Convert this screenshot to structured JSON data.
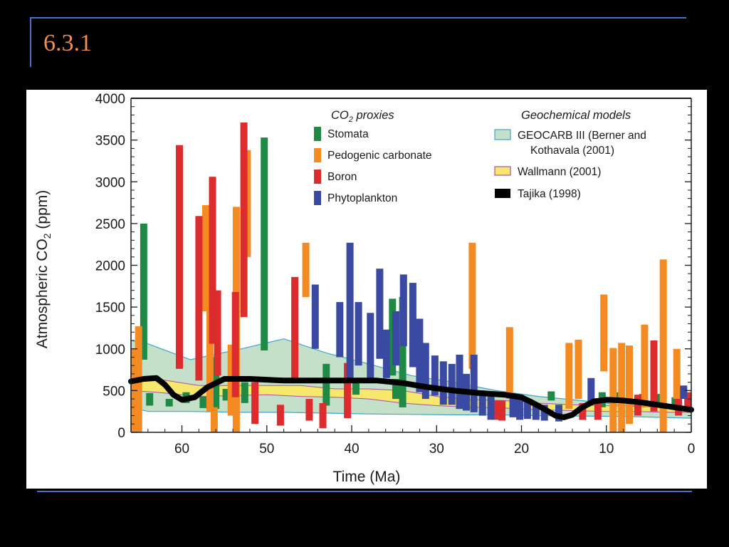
{
  "slide": {
    "title": "6.3.1"
  },
  "chart_data": {
    "type": "bar",
    "xlabel": "Time (Ma)",
    "ylabel": "Atmospheric CO₂ (ppm)",
    "xlim": [
      66,
      0
    ],
    "ylim": [
      0,
      4000
    ],
    "x_ticks": [
      60,
      50,
      40,
      30,
      20,
      10,
      0
    ],
    "y_ticks": [
      0,
      500,
      1000,
      1500,
      2000,
      2500,
      3000,
      3500,
      4000
    ],
    "legend_proxies": {
      "heading": "CO₂ proxies",
      "items": [
        {
          "name": "Stomata",
          "color": "#1e8a45"
        },
        {
          "name": "Pedogenic carbonate",
          "color": "#f48a22"
        },
        {
          "name": "Boron",
          "color": "#dc2c2e"
        },
        {
          "name": "Phytoplankton",
          "color": "#3a4aa3"
        }
      ]
    },
    "legend_models": {
      "heading": "Geochemical models",
      "items": [
        {
          "name": "GEOCARB III (Berner and",
          "name_line2": "Kothavala (2001)",
          "color": "#c4e0c8",
          "stroke": "#3da5cf"
        },
        {
          "name": "Wallmann (2001)",
          "color": "#f5e86c",
          "stroke": "#b04fa0"
        },
        {
          "name": "Tajika (1998)",
          "color": "#000000"
        }
      ]
    },
    "proxy_ranges": [
      {
        "proxy": "Stomata",
        "x": 64.5,
        "low": 870,
        "high": 2500
      },
      {
        "proxy": "Stomata",
        "x": 65.5,
        "low": 330,
        "high": 520
      },
      {
        "proxy": "Stomata",
        "x": 63.8,
        "low": 320,
        "high": 470
      },
      {
        "proxy": "Stomata",
        "x": 61.5,
        "low": 310,
        "high": 400
      },
      {
        "proxy": "Stomata",
        "x": 59.5,
        "low": 350,
        "high": 480
      },
      {
        "proxy": "Stomata",
        "x": 57.5,
        "low": 290,
        "high": 430
      },
      {
        "proxy": "Stomata",
        "x": 56.0,
        "low": 280,
        "high": 900
      },
      {
        "proxy": "Stomata",
        "x": 54.8,
        "low": 380,
        "high": 520
      },
      {
        "proxy": "Stomata",
        "x": 52.6,
        "low": 350,
        "high": 600
      },
      {
        "proxy": "Stomata",
        "x": 50.3,
        "low": 980,
        "high": 3530
      },
      {
        "proxy": "Stomata",
        "x": 43.0,
        "low": 320,
        "high": 820
      },
      {
        "proxy": "Stomata",
        "x": 39.5,
        "low": 450,
        "high": 600
      },
      {
        "proxy": "Stomata",
        "x": 35.2,
        "low": 680,
        "high": 1600
      },
      {
        "proxy": "Stomata",
        "x": 34.8,
        "low": 400,
        "high": 640
      },
      {
        "proxy": "Stomata",
        "x": 34.0,
        "low": 300,
        "high": 1620
      },
      {
        "proxy": "Stomata",
        "x": 16.5,
        "low": 380,
        "high": 490
      },
      {
        "proxy": "Stomata",
        "x": 10.5,
        "low": 300,
        "high": 480
      },
      {
        "proxy": "Stomata",
        "x": 8.7,
        "low": 350,
        "high": 480
      },
      {
        "proxy": "Stomata",
        "x": 5.7,
        "low": 300,
        "high": 460
      },
      {
        "proxy": "Stomata",
        "x": 3.8,
        "low": 320,
        "high": 460
      },
      {
        "proxy": "Stomata",
        "x": 1.9,
        "low": 280,
        "high": 420
      },
      {
        "proxy": "Pedogenic carbonate",
        "x": 65.6,
        "low": 0,
        "high": 1000
      },
      {
        "proxy": "Pedogenic carbonate",
        "x": 65.1,
        "low": 0,
        "high": 1270
      },
      {
        "proxy": "Pedogenic carbonate",
        "x": 57.2,
        "low": 1450,
        "high": 2720
      },
      {
        "proxy": "Pedogenic carbonate",
        "x": 56.7,
        "low": 250,
        "high": 2120
      },
      {
        "proxy": "Pedogenic carbonate",
        "x": 56.2,
        "low": 0,
        "high": 300
      },
      {
        "proxy": "Pedogenic carbonate",
        "x": 54.2,
        "low": 200,
        "high": 1050
      },
      {
        "proxy": "Pedogenic carbonate",
        "x": 53.6,
        "low": 0,
        "high": 2700
      },
      {
        "proxy": "Pedogenic carbonate",
        "x": 52.3,
        "low": 2100,
        "high": 3380
      },
      {
        "proxy": "Pedogenic carbonate",
        "x": 45.4,
        "low": 1620,
        "high": 2270
      },
      {
        "proxy": "Pedogenic carbonate",
        "x": 25.8,
        "low": 760,
        "high": 2270
      },
      {
        "proxy": "Pedogenic carbonate",
        "x": 21.4,
        "low": 400,
        "high": 1260
      },
      {
        "proxy": "Pedogenic carbonate",
        "x": 14.4,
        "low": 280,
        "high": 1070
      },
      {
        "proxy": "Pedogenic carbonate",
        "x": 13.3,
        "low": 400,
        "high": 1110
      },
      {
        "proxy": "Pedogenic carbonate",
        "x": 10.3,
        "low": 730,
        "high": 1650
      },
      {
        "proxy": "Pedogenic carbonate",
        "x": 9.2,
        "low": 0,
        "high": 1010
      },
      {
        "proxy": "Pedogenic carbonate",
        "x": 8.2,
        "low": 0,
        "high": 1070
      },
      {
        "proxy": "Pedogenic carbonate",
        "x": 7.3,
        "low": 100,
        "high": 1040
      },
      {
        "proxy": "Pedogenic carbonate",
        "x": 5.5,
        "low": 300,
        "high": 1290
      },
      {
        "proxy": "Pedogenic carbonate",
        "x": 3.3,
        "low": 0,
        "high": 2070
      },
      {
        "proxy": "Pedogenic carbonate",
        "x": 1.7,
        "low": 400,
        "high": 1000
      },
      {
        "proxy": "Boron",
        "x": 60.3,
        "low": 760,
        "high": 3440
      },
      {
        "proxy": "Boron",
        "x": 58.0,
        "low": 620,
        "high": 2590
      },
      {
        "proxy": "Boron",
        "x": 56.4,
        "low": 1060,
        "high": 3060
      },
      {
        "proxy": "Boron",
        "x": 55.8,
        "low": 680,
        "high": 1700
      },
      {
        "proxy": "Boron",
        "x": 53.7,
        "low": 420,
        "high": 1680
      },
      {
        "proxy": "Boron",
        "x": 52.7,
        "low": 1380,
        "high": 3710
      },
      {
        "proxy": "Boron",
        "x": 51.4,
        "low": 100,
        "high": 600
      },
      {
        "proxy": "Boron",
        "x": 48.4,
        "low": 80,
        "high": 330
      },
      {
        "proxy": "Boron",
        "x": 46.7,
        "low": 600,
        "high": 1860
      },
      {
        "proxy": "Boron",
        "x": 45.0,
        "low": 140,
        "high": 400
      },
      {
        "proxy": "Boron",
        "x": 43.4,
        "low": 50,
        "high": 350
      },
      {
        "proxy": "Boron",
        "x": 40.5,
        "low": 170,
        "high": 830
      },
      {
        "proxy": "Boron",
        "x": 23.0,
        "low": 150,
        "high": 380
      },
      {
        "proxy": "Boron",
        "x": 22.3,
        "low": 140,
        "high": 380
      },
      {
        "proxy": "Boron",
        "x": 12.8,
        "low": 150,
        "high": 350
      },
      {
        "proxy": "Boron",
        "x": 11.0,
        "low": 150,
        "high": 400
      },
      {
        "proxy": "Boron",
        "x": 6.3,
        "low": 200,
        "high": 450
      },
      {
        "proxy": "Boron",
        "x": 4.4,
        "low": 250,
        "high": 1100
      },
      {
        "proxy": "Boron",
        "x": 1.5,
        "low": 200,
        "high": 400
      },
      {
        "proxy": "Boron",
        "x": 0.4,
        "low": 250,
        "high": 480
      },
      {
        "proxy": "Phytoplankton",
        "x": 44.3,
        "low": 1000,
        "high": 1770
      },
      {
        "proxy": "Phytoplankton",
        "x": 41.4,
        "low": 900,
        "high": 1560
      },
      {
        "proxy": "Phytoplankton",
        "x": 40.2,
        "low": 600,
        "high": 2270
      },
      {
        "proxy": "Phytoplankton",
        "x": 39.2,
        "low": 800,
        "high": 1560
      },
      {
        "proxy": "Phytoplankton",
        "x": 37.8,
        "low": 650,
        "high": 1430
      },
      {
        "proxy": "Phytoplankton",
        "x": 36.7,
        "low": 880,
        "high": 1960
      },
      {
        "proxy": "Phytoplankton",
        "x": 35.9,
        "low": 650,
        "high": 1230
      },
      {
        "proxy": "Phytoplankton",
        "x": 34.8,
        "low": 800,
        "high": 1450
      },
      {
        "proxy": "Phytoplankton",
        "x": 33.9,
        "low": 1030,
        "high": 1890
      },
      {
        "proxy": "Phytoplankton",
        "x": 32.8,
        "low": 780,
        "high": 1790
      },
      {
        "proxy": "Phytoplankton",
        "x": 32.0,
        "low": 480,
        "high": 1360
      },
      {
        "proxy": "Phytoplankton",
        "x": 31.3,
        "low": 400,
        "high": 1070
      },
      {
        "proxy": "Phytoplankton",
        "x": 30.2,
        "low": 440,
        "high": 920
      },
      {
        "proxy": "Phytoplankton",
        "x": 29.2,
        "low": 330,
        "high": 850
      },
      {
        "proxy": "Phytoplankton",
        "x": 28.2,
        "low": 330,
        "high": 820
      },
      {
        "proxy": "Phytoplankton",
        "x": 27.3,
        "low": 280,
        "high": 930
      },
      {
        "proxy": "Phytoplankton",
        "x": 26.5,
        "low": 260,
        "high": 700
      },
      {
        "proxy": "Phytoplankton",
        "x": 25.6,
        "low": 240,
        "high": 930
      },
      {
        "proxy": "Phytoplankton",
        "x": 24.6,
        "low": 200,
        "high": 500
      },
      {
        "proxy": "Phytoplankton",
        "x": 23.6,
        "low": 150,
        "high": 450
      },
      {
        "proxy": "Phytoplankton",
        "x": 21.0,
        "low": 180,
        "high": 450
      },
      {
        "proxy": "Phytoplankton",
        "x": 20.2,
        "low": 150,
        "high": 400
      },
      {
        "proxy": "Phytoplankton",
        "x": 19.3,
        "low": 160,
        "high": 380
      },
      {
        "proxy": "Phytoplankton",
        "x": 18.3,
        "low": 150,
        "high": 350
      },
      {
        "proxy": "Phytoplankton",
        "x": 17.3,
        "low": 140,
        "high": 330
      },
      {
        "proxy": "Phytoplankton",
        "x": 15.6,
        "low": 130,
        "high": 330
      },
      {
        "proxy": "Phytoplankton",
        "x": 11.8,
        "low": 350,
        "high": 650
      },
      {
        "proxy": "Phytoplankton",
        "x": 0.9,
        "low": 400,
        "high": 560
      }
    ],
    "geocarb_envelope": {
      "x": [
        66,
        64,
        59,
        53,
        48,
        43,
        38,
        33,
        28,
        23,
        18,
        13,
        8,
        4,
        0
      ],
      "upper": [
        1100,
        1060,
        870,
        1000,
        1120,
        950,
        820,
        680,
        600,
        500,
        430,
        380,
        330,
        300,
        300
      ],
      "lower": [
        300,
        250,
        250,
        240,
        240,
        230,
        220,
        215,
        210,
        210,
        200,
        195,
        190,
        180,
        170
      ]
    },
    "wallmann_band": {
      "x": [
        66,
        63,
        58,
        54,
        50,
        46,
        42,
        38,
        34,
        30,
        26,
        22,
        18,
        14,
        10,
        6,
        3,
        0
      ],
      "upper": [
        650,
        640,
        560,
        560,
        560,
        560,
        520,
        520,
        500,
        430,
        390,
        380,
        350,
        330,
        320,
        310,
        300,
        290
      ],
      "lower": [
        500,
        480,
        430,
        440,
        450,
        430,
        420,
        400,
        350,
        320,
        300,
        290,
        270,
        260,
        250,
        250,
        240,
        240
      ]
    },
    "tajika_curve": {
      "x": [
        66,
        64.5,
        63,
        62,
        61,
        60,
        58.5,
        57,
        55,
        52,
        48,
        44,
        40,
        37,
        34,
        31,
        28,
        25,
        22,
        20,
        19,
        17.5,
        16,
        15,
        14,
        13,
        11.5,
        10,
        8,
        6,
        4,
        2,
        0
      ],
      "y": [
        610,
        640,
        650,
        570,
        450,
        390,
        420,
        540,
        640,
        640,
        620,
        620,
        620,
        620,
        590,
        540,
        500,
        470,
        450,
        420,
        370,
        290,
        200,
        180,
        210,
        290,
        370,
        390,
        380,
        360,
        330,
        300,
        270
      ]
    }
  }
}
